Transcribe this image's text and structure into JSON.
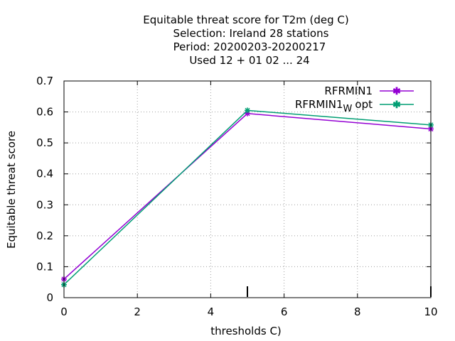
{
  "chart_data": {
    "type": "line",
    "title_lines": [
      "Equitable threat score  for T2m (deg C)",
      "Selection: Ireland     28 stations",
      "Period: 20200203-20200217",
      "Used  12 + 01 02 ... 24"
    ],
    "xlabel": "thresholds C)",
    "ylabel": "Equitable threat score",
    "xlim": [
      0,
      10
    ],
    "ylim": [
      0,
      0.7
    ],
    "xticks": [
      "0",
      "2",
      "4",
      "6",
      "8",
      "10"
    ],
    "yticks": [
      "0",
      "0.1",
      "0.2",
      "0.3",
      "0.4",
      "0.5",
      "0.6",
      "0.7"
    ],
    "grid": true,
    "legend_position": "top-right",
    "x": [
      0,
      5,
      10
    ],
    "series": [
      {
        "name": "RFRMIN1",
        "name_sub": "",
        "color": "#9400d3",
        "values": [
          0.06,
          0.595,
          0.545
        ]
      },
      {
        "name": "RFRMIN1",
        "name_sub": "W",
        "name_suffix": "opt",
        "color": "#009e73",
        "values": [
          0.042,
          0.605,
          0.558
        ]
      }
    ],
    "count_marks_x": [
      5,
      10
    ]
  }
}
